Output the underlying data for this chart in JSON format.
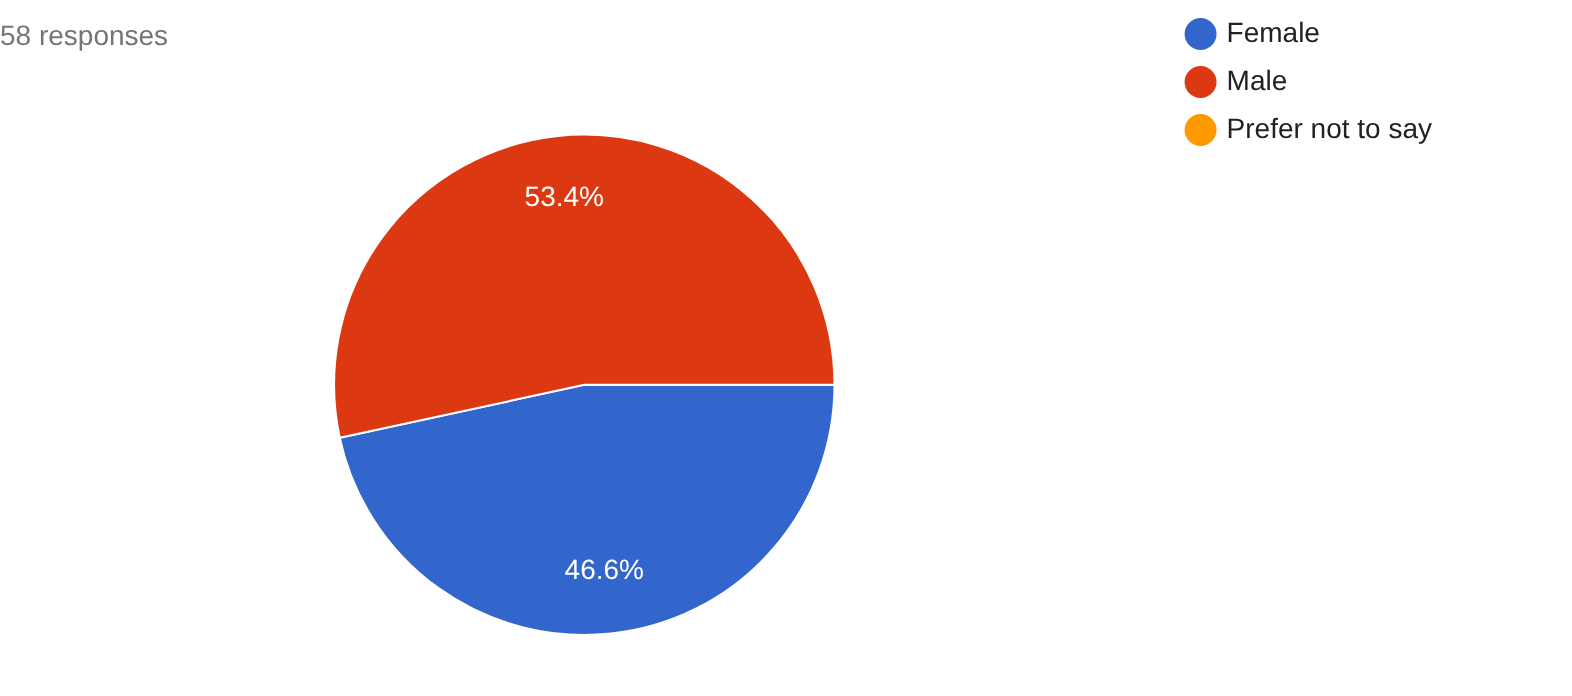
{
  "chart_data": {
    "type": "pie",
    "title": "58 responses",
    "categories": [
      "Female",
      "Male",
      "Prefer not to say"
    ],
    "values": [
      46.6,
      53.4,
      0
    ],
    "colors": [
      "#3366cc",
      "#dc3912",
      "#ff9900"
    ],
    "value_labels": [
      "46.6%",
      "53.4%",
      null
    ],
    "legend": "right"
  }
}
